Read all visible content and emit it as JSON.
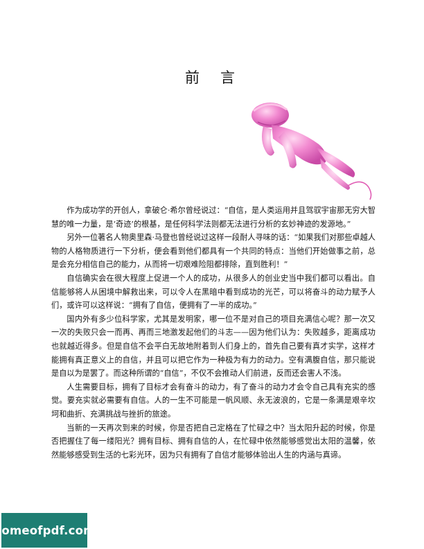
{
  "page": {
    "title_part1": "前",
    "title_part2": "言"
  },
  "paragraphs": [
    "作为成功学的开创人，拿破仑·希尔曾经说过：“自信，是人类运用并且驾驭宇宙那无穷大智慧的唯一力量，是‘奇迹’的根基，是任何科学法则都无法进行分析的玄妙神迹的发源地。”",
    "另外一位著名人物奥里森·马登也曾经说过这样一段耐人寻味的话：“如果我们对那些卓越人物的人格物质进行一下分析，便会看到他们都具有一个共同的特点：当他们开始做事之前，总是会充分相信自己的能力，从而将一切艰难险阻都排除，直到胜利！”",
    "自信确实会在很大程度上促进一个人的成功，从很多人的创业史当中我们都可以看出。自信能够将人从困境中解救出来，可以令人在黑暗中看到成功的光芒，可以将奋斗的动力赋予人们，或许可以这样说：“拥有了自信，便拥有了一半的成功。”",
    "国内外有多少位科学家，尤其是发明家，哪一位不是对自己的项目充满信心呢？那一次又一次的失败只会一而再、再而三地激发起他们的斗志——因为他们认为：失败越多，距离成功也就越近得多。但是自信不会平白无故地附着到人们身上的，首先自己要有真才实学，这样才能拥有真正意义上的自信，并且可以把它作为一种极为有力的动力。空有满腹自信，那只能说是自以为是罢了。而这种所谓的“自信”，不仅不会推动人们前进，反而还会害人不浅。",
    "人生需要目标，拥有了目标才会有奋斗的动力，有了奋斗的动力才会令自己具有充实的感觉。要充实就必需要有自信。人的一生不可能是一帆风顺、永无波浪的，它是一条满是艰辛坎坷和曲折、充满挑战与挫折的旅途。",
    "当新的一天再次到来的时候，你是否把自己定格在了忙碌之中？当太阳升起的时候，你是否把握住了每一缕阳光？拥有目标、拥有自信的人，在忙碌中依然能够感觉出太阳的温馨，依然能够感受到生活的七彩光环，因为只有拥有了自信才能够体验出人生的内涵与真谛。"
  ],
  "watermark": {
    "text": "homeofpdf.com",
    "background": "#1e7e73"
  },
  "illustration": {
    "subject": "pink-flying-figure",
    "color": "#f07cc4"
  }
}
